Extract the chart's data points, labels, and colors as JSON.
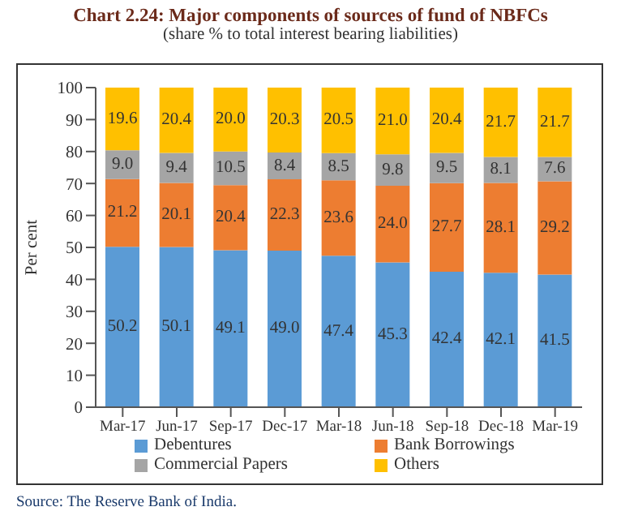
{
  "chart_data": {
    "type": "bar",
    "stacked": true,
    "title": "Chart 2.24: Major components of sources of fund of NBFCs",
    "subtitle": "(share % to total interest bearing liabilities)",
    "ylabel": "Per cent",
    "annotations": [
      "Source: The Reserve Bank of India."
    ],
    "categories": [
      "Mar-17",
      "Jun-17",
      "Sep-17",
      "Dec-17",
      "Mar-18",
      "Jun-18",
      "Sep-18",
      "Dec-18",
      "Mar-19"
    ],
    "series": [
      {
        "name": "Debentures",
        "color": "#5b9bd5",
        "values": [
          50.2,
          50.1,
          49.1,
          49.0,
          47.4,
          45.3,
          42.4,
          42.1,
          41.5
        ],
        "value_labels": [
          "50.2",
          "50.1",
          "49.1",
          "49.0",
          "47.4",
          "45.3",
          "42.4",
          "42.1",
          "41.5"
        ]
      },
      {
        "name": "Bank Borrowings",
        "color": "#ed7d31",
        "values": [
          21.2,
          20.1,
          20.4,
          22.3,
          23.6,
          24.0,
          27.7,
          28.1,
          29.2
        ],
        "value_labels": [
          "21.2",
          "20.1",
          "20.4",
          "22.3",
          "23.6",
          "24.0",
          "27.7",
          "28.1",
          "29.2"
        ]
      },
      {
        "name": "Commercial Papers",
        "color": "#a5a5a5",
        "values": [
          9.0,
          9.4,
          10.5,
          8.4,
          8.5,
          9.8,
          9.5,
          8.1,
          7.6
        ],
        "value_labels": [
          "9.0",
          "9.4",
          "10.5",
          "8.4",
          "8.5",
          "9.8",
          "9.5",
          "8.1",
          "7.6"
        ]
      },
      {
        "name": "Others",
        "color": "#ffc000",
        "values": [
          19.6,
          20.4,
          20.0,
          20.3,
          20.5,
          21.0,
          20.4,
          21.7,
          21.7
        ],
        "value_labels": [
          "19.6",
          "20.4",
          "20.0",
          "20.3",
          "20.5",
          "21.0",
          "20.4",
          "21.7",
          "21.7"
        ]
      }
    ],
    "ylim": [
      0,
      100
    ],
    "yticks": [
      0,
      10,
      20,
      30,
      40,
      50,
      60,
      70,
      80,
      90,
      100
    ],
    "grid": false,
    "legend": "bottom"
  }
}
